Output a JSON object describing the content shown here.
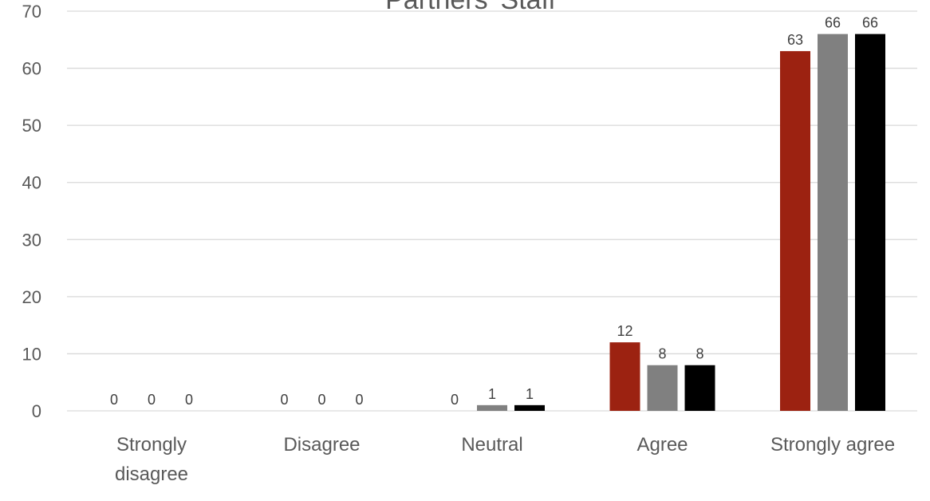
{
  "chart_data": {
    "type": "bar",
    "title": "Partners' Staff",
    "categories": [
      "Strongly disagree",
      "Disagree",
      "Neutral",
      "Agree",
      "Strongly agree"
    ],
    "category_lines": [
      [
        "Strongly",
        "disagree"
      ],
      [
        "Disagree"
      ],
      [
        "Neutral"
      ],
      [
        "Agree"
      ],
      [
        "Strongly agree"
      ]
    ],
    "series": [
      {
        "values": [
          0,
          0,
          0,
          12,
          63
        ],
        "color": "#9c2211"
      },
      {
        "values": [
          0,
          0,
          1,
          8,
          66
        ],
        "color": "#808080"
      },
      {
        "values": [
          0,
          0,
          1,
          8,
          66
        ],
        "color": "#000000"
      }
    ],
    "ylim": [
      0,
      70
    ],
    "yticks": [
      0,
      10,
      20,
      30,
      40,
      50,
      60,
      70
    ],
    "grid": true,
    "legend": "none",
    "data_labels": true
  }
}
